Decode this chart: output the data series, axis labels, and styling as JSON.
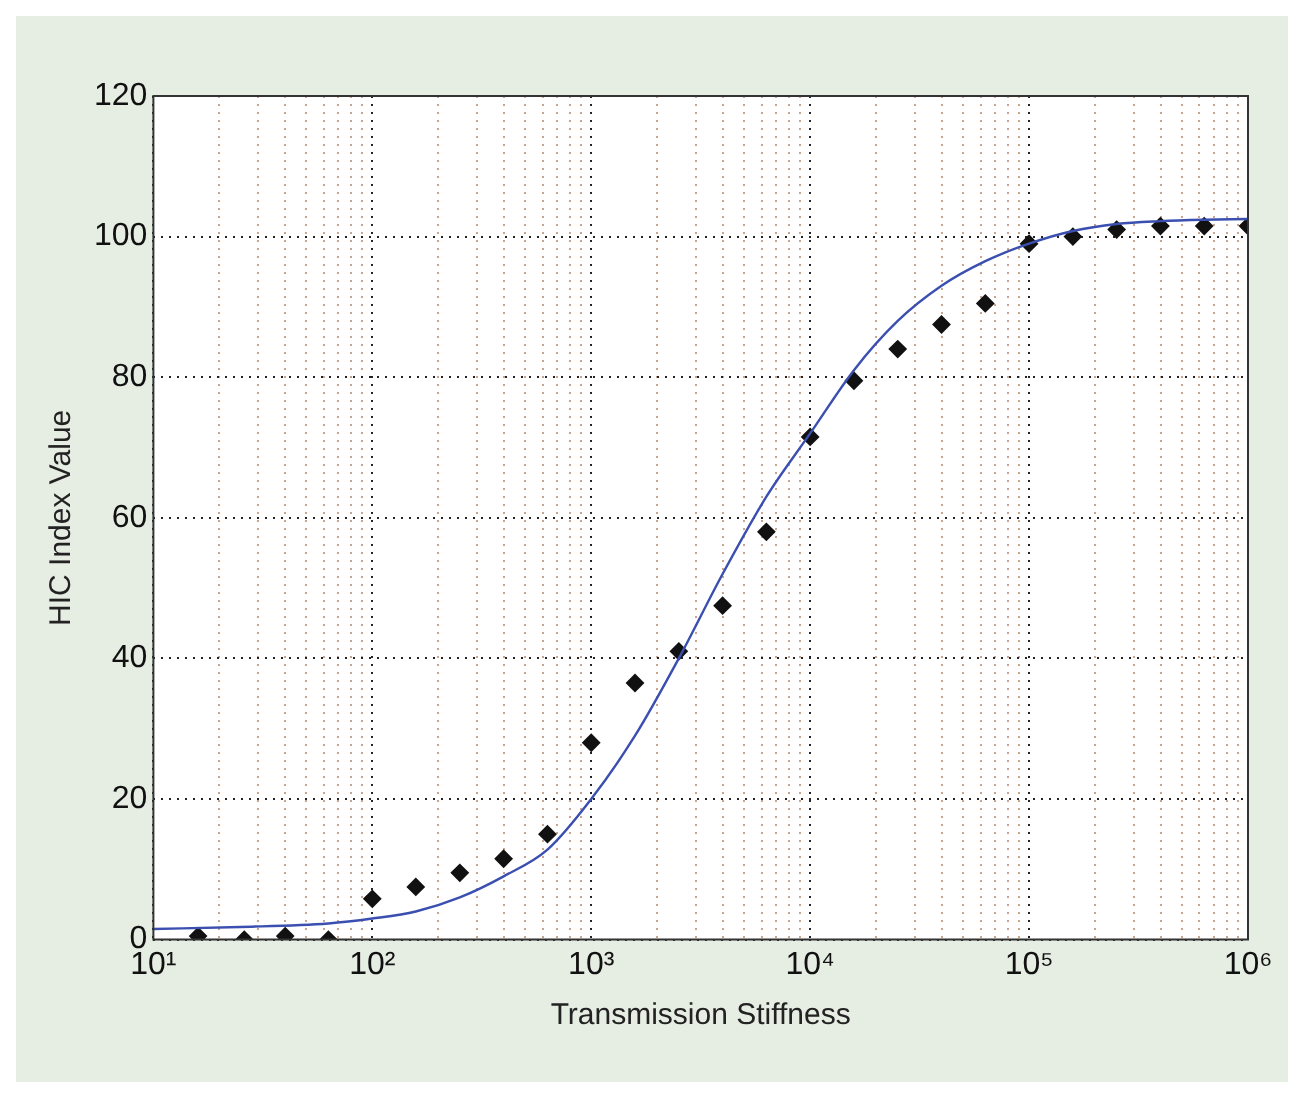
{
  "chart_data": {
    "type": "scatter",
    "xlabel": "Transmission Stiffness",
    "ylabel": "HIC Index Value",
    "log": "x",
    "grid": true,
    "marker": "diamond",
    "xlim": [
      10,
      1000000
    ],
    "ylim": [
      0,
      120
    ],
    "yticks": [
      0,
      20,
      40,
      60,
      80,
      100,
      120
    ],
    "xticks": [
      {
        "value": 10,
        "label": "10¹"
      },
      {
        "value": 20,
        "label": null
      },
      {
        "value": 30,
        "label": null
      },
      {
        "value": 40,
        "label": null
      },
      {
        "value": 50,
        "label": null
      },
      {
        "value": 60,
        "label": null
      },
      {
        "value": 70,
        "label": null
      },
      {
        "value": 80,
        "label": null
      },
      {
        "value": 90,
        "label": null
      },
      {
        "value": 100,
        "label": "10²"
      },
      {
        "value": 200,
        "label": null
      },
      {
        "value": 300,
        "label": null
      },
      {
        "value": 400,
        "label": null
      },
      {
        "value": 500,
        "label": null
      },
      {
        "value": 600,
        "label": null
      },
      {
        "value": 700,
        "label": null
      },
      {
        "value": 800,
        "label": null
      },
      {
        "value": 900,
        "label": null
      },
      {
        "value": 1000,
        "label": "10³"
      },
      {
        "value": 2000,
        "label": null
      },
      {
        "value": 3000,
        "label": null
      },
      {
        "value": 4000,
        "label": null
      },
      {
        "value": 5000,
        "label": null
      },
      {
        "value": 6000,
        "label": null
      },
      {
        "value": 7000,
        "label": null
      },
      {
        "value": 8000,
        "label": null
      },
      {
        "value": 9000,
        "label": null
      },
      {
        "value": 10000,
        "label": "10⁴"
      },
      {
        "value": 20000,
        "label": null
      },
      {
        "value": 30000,
        "label": null
      },
      {
        "value": 40000,
        "label": null
      },
      {
        "value": 50000,
        "label": null
      },
      {
        "value": 60000,
        "label": null
      },
      {
        "value": 70000,
        "label": null
      },
      {
        "value": 80000,
        "label": null
      },
      {
        "value": 90000,
        "label": null
      },
      {
        "value": 100000,
        "label": "10⁵"
      },
      {
        "value": 200000,
        "label": null
      },
      {
        "value": 300000,
        "label": null
      },
      {
        "value": 400000,
        "label": null
      },
      {
        "value": 500000,
        "label": null
      },
      {
        "value": 600000,
        "label": null
      },
      {
        "value": 700000,
        "label": null
      },
      {
        "value": 800000,
        "label": null
      },
      {
        "value": 900000,
        "label": null
      },
      {
        "value": 1000000,
        "label": "10⁶"
      }
    ],
    "series": [
      {
        "color": "#111111",
        "x": [
          16,
          26,
          40,
          63,
          100,
          158,
          251,
          398,
          631,
          1000,
          1585,
          2512,
          3981,
          6310,
          10000,
          15850,
          25120,
          39810,
          63100,
          100000,
          158500,
          251200,
          398100,
          631000,
          1000000
        ],
        "values": [
          0.5,
          0,
          0.5,
          0,
          5.8,
          7.5,
          9.5,
          11.5,
          15,
          28,
          36.5,
          41,
          47.5,
          58,
          71.5,
          79.5,
          84,
          87.5,
          90.5,
          99,
          100,
          101,
          101.5,
          101.5,
          101.5
        ]
      },
      {
        "type": "line",
        "color": "#3a4fb0",
        "marker": "none",
        "x": [
          10,
          25,
          63,
          100,
          158,
          251,
          398,
          631,
          1000,
          1585,
          2512,
          3981,
          6310,
          10000,
          15850,
          25120,
          39810,
          63100,
          100000,
          158500,
          251200,
          398100,
          631000,
          1000000
        ],
        "values": [
          1.5,
          1.8,
          2.3,
          3,
          4,
          6,
          9,
          12.8,
          20,
          29,
          40,
          52,
          63,
          72,
          81,
          88,
          93,
          96.5,
          99,
          100.8,
          101.8,
          102.2,
          102.4,
          102.5
        ]
      }
    ]
  }
}
